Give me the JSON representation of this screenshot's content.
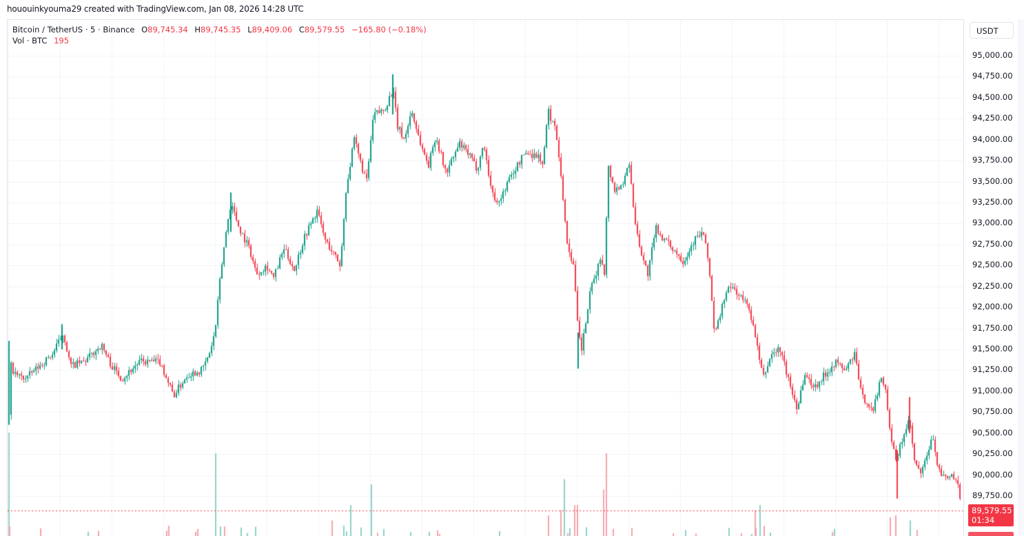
{
  "attribution": "hououinkyouma29 created with TradingView.com, Jan 08, 2026 14:28 UTC",
  "legend": {
    "symbol": "Bitcoin / TetherUS · 5 · Binance",
    "open_label": "O",
    "open": "89,745.34",
    "high_label": "H",
    "high": "89,745.35",
    "low_label": "L",
    "low": "89,409.06",
    "close_label": "C",
    "close": "89,579.55",
    "change": "−165.80 (−0.18%)",
    "volume_label": "Vol · BTC",
    "volume": "195"
  },
  "axis": {
    "currency": "USDT",
    "ticks": [
      "95,000.00",
      "94,750.00",
      "94,500.00",
      "94,250.00",
      "94,000.00",
      "93,750.00",
      "93,500.00",
      "93,250.00",
      "93,000.00",
      "92,750.00",
      "92,500.00",
      "92,250.00",
      "92,000.00",
      "91,750.00",
      "91,500.00",
      "91,250.00",
      "91,000.00",
      "90,750.00",
      "90,500.00",
      "90,250.00",
      "90,000.00",
      "89,750.00"
    ],
    "last_price": "89,579.55",
    "countdown": "01:34"
  },
  "colors": {
    "up": "#089981",
    "down": "#f23645",
    "up_volume": "#8dd1c5",
    "down_volume": "#f5a3a9",
    "grid": "#f0f3fa",
    "last_price_line": "#f23645"
  },
  "chart_data": {
    "type": "candlestick",
    "title": "Bitcoin / TetherUS · 5 · Binance",
    "xlabel": "",
    "ylabel": "USDT",
    "ylim": [
      89500,
      95200
    ],
    "y_ticks": [
      95000,
      94750,
      94500,
      94250,
      94000,
      93750,
      93500,
      93250,
      93000,
      92750,
      92500,
      92250,
      92000,
      91750,
      91500,
      91250,
      91000,
      90750,
      90500,
      90250,
      90000,
      89750
    ],
    "grid": true,
    "last": {
      "open": 89745.34,
      "high": 89745.35,
      "low": 89409.06,
      "close": 89579.55,
      "change": -165.8,
      "change_pct": -0.18,
      "volume": 195
    },
    "price_path": [
      [
        11,
        90700
      ],
      [
        14,
        91300
      ],
      [
        20,
        91200
      ],
      [
        35,
        91150
      ],
      [
        55,
        91300
      ],
      [
        75,
        91450
      ],
      [
        90,
        91700
      ],
      [
        100,
        91300
      ],
      [
        120,
        91350
      ],
      [
        145,
        91550
      ],
      [
        160,
        91300
      ],
      [
        175,
        91150
      ],
      [
        200,
        91350
      ],
      [
        230,
        91350
      ],
      [
        250,
        90950
      ],
      [
        270,
        91200
      ],
      [
        290,
        91250
      ],
      [
        300,
        91400
      ],
      [
        310,
        91700
      ],
      [
        318,
        92400
      ],
      [
        326,
        92900
      ],
      [
        333,
        93250
      ],
      [
        345,
        92950
      ],
      [
        360,
        92700
      ],
      [
        370,
        92400
      ],
      [
        385,
        92500
      ],
      [
        395,
        92350
      ],
      [
        410,
        92700
      ],
      [
        425,
        92450
      ],
      [
        440,
        92850
      ],
      [
        458,
        93150
      ],
      [
        470,
        92800
      ],
      [
        485,
        92600
      ],
      [
        492,
        92500
      ],
      [
        500,
        93400
      ],
      [
        512,
        94000
      ],
      [
        522,
        93700
      ],
      [
        530,
        93500
      ],
      [
        540,
        94300
      ],
      [
        555,
        94350
      ],
      [
        568,
        94600
      ],
      [
        575,
        94150
      ],
      [
        585,
        94000
      ],
      [
        595,
        94350
      ],
      [
        610,
        93900
      ],
      [
        620,
        93700
      ],
      [
        630,
        94050
      ],
      [
        645,
        93600
      ],
      [
        665,
        93950
      ],
      [
        680,
        93800
      ],
      [
        690,
        93650
      ],
      [
        700,
        93950
      ],
      [
        712,
        93350
      ],
      [
        722,
        93250
      ],
      [
        735,
        93500
      ],
      [
        760,
        93850
      ],
      [
        780,
        93800
      ],
      [
        786,
        93700
      ],
      [
        793,
        94350
      ],
      [
        805,
        94100
      ],
      [
        812,
        93600
      ],
      [
        820,
        92800
      ],
      [
        830,
        92500
      ],
      [
        837,
        91700
      ],
      [
        842,
        91500
      ],
      [
        855,
        92200
      ],
      [
        870,
        92600
      ],
      [
        876,
        92400
      ],
      [
        880,
        93700
      ],
      [
        890,
        93400
      ],
      [
        900,
        93450
      ],
      [
        910,
        93750
      ],
      [
        920,
        93000
      ],
      [
        930,
        92600
      ],
      [
        938,
        92400
      ],
      [
        950,
        92950
      ],
      [
        962,
        92800
      ],
      [
        975,
        92700
      ],
      [
        990,
        92550
      ],
      [
        1005,
        92800
      ],
      [
        1018,
        92900
      ],
      [
        1027,
        92500
      ],
      [
        1035,
        91650
      ],
      [
        1050,
        92150
      ],
      [
        1060,
        92250
      ],
      [
        1075,
        92100
      ],
      [
        1085,
        92000
      ],
      [
        1095,
        91600
      ],
      [
        1105,
        91150
      ],
      [
        1118,
        91450
      ],
      [
        1130,
        91500
      ],
      [
        1145,
        91050
      ],
      [
        1155,
        90800
      ],
      [
        1165,
        91200
      ],
      [
        1180,
        91050
      ],
      [
        1195,
        91200
      ],
      [
        1210,
        91350
      ],
      [
        1225,
        91250
      ],
      [
        1238,
        91450
      ],
      [
        1248,
        90950
      ],
      [
        1258,
        90850
      ],
      [
        1265,
        90750
      ],
      [
        1275,
        91150
      ],
      [
        1282,
        91100
      ],
      [
        1290,
        90500
      ],
      [
        1298,
        90150
      ],
      [
        1308,
        90450
      ],
      [
        1318,
        90650
      ],
      [
        1325,
        90150
      ],
      [
        1335,
        90000
      ],
      [
        1345,
        90300
      ],
      [
        1352,
        90450
      ],
      [
        1360,
        90050
      ],
      [
        1370,
        89950
      ],
      [
        1380,
        90000
      ],
      [
        1388,
        89850
      ],
      [
        1393,
        89580
      ]
    ],
    "volume_spikes": [
      [
        11,
        1.0
      ],
      [
        311,
        0.8
      ],
      [
        480,
        0.15
      ],
      [
        497,
        0.1
      ],
      [
        507,
        0.3
      ],
      [
        537,
        0.5
      ],
      [
        794,
        0.2
      ],
      [
        812,
        0.25
      ],
      [
        817,
        0.55
      ],
      [
        832,
        0.3
      ],
      [
        836,
        0.3
      ],
      [
        874,
        0.45
      ],
      [
        878,
        0.8
      ],
      [
        1094,
        0.25
      ],
      [
        1101,
        0.3
      ],
      [
        1290,
        0.18
      ],
      [
        1298,
        0.2
      ],
      [
        1319,
        0.15
      ]
    ]
  }
}
